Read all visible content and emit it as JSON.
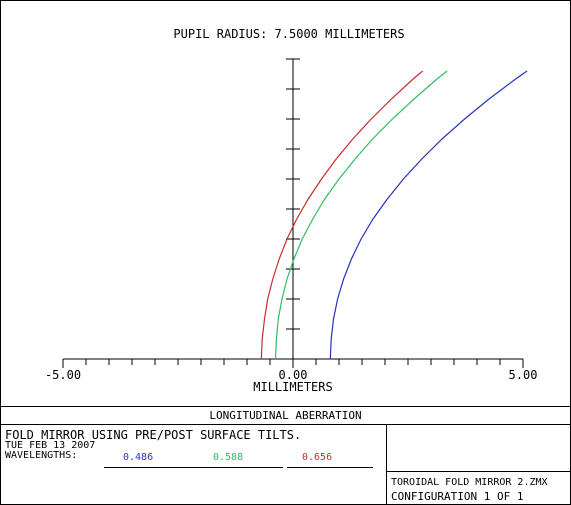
{
  "chart_data": {
    "type": "line",
    "title": "PUPIL RADIUS: 7.5000 MILLIMETERS",
    "xlabel": "MILLIMETERS",
    "ylabel": "",
    "xlim": [
      -5.0,
      5.0
    ],
    "ylim": [
      0,
      7.5
    ],
    "x_ticks": [
      -5.0,
      -4.5,
      -4.0,
      -3.5,
      -3.0,
      -2.5,
      -2.0,
      -1.5,
      -1.0,
      -0.5,
      0.0,
      0.5,
      1.0,
      1.5,
      2.0,
      2.5,
      3.0,
      3.5,
      4.0,
      4.5,
      5.0
    ],
    "x_tick_labels": [
      "-5.00",
      "0.00",
      "5.00"
    ],
    "x_tick_label_values": [
      -5.0,
      0.0,
      5.0
    ],
    "y_ticks": [
      0.75,
      1.5,
      2.25,
      3.0,
      3.75,
      4.5,
      5.25,
      6.0,
      6.75,
      7.5
    ],
    "grid": false,
    "series": [
      {
        "name": "0.486",
        "color": "#2733b8",
        "points": [
          [
            0.81,
            0.0
          ],
          [
            0.83,
            0.5
          ],
          [
            0.88,
            1.0
          ],
          [
            0.97,
            1.5
          ],
          [
            1.1,
            2.0
          ],
          [
            1.27,
            2.5
          ],
          [
            1.48,
            3.0
          ],
          [
            1.74,
            3.5
          ],
          [
            2.05,
            4.0
          ],
          [
            2.4,
            4.5
          ],
          [
            2.8,
            5.0
          ],
          [
            3.24,
            5.5
          ],
          [
            3.73,
            6.0
          ],
          [
            4.26,
            6.5
          ],
          [
            4.84,
            7.0
          ],
          [
            5.09,
            7.2
          ]
        ]
      },
      {
        "name": "0.588",
        "color": "#2fbf62",
        "points": [
          [
            -0.38,
            0.0
          ],
          [
            -0.36,
            0.5
          ],
          [
            -0.32,
            1.0
          ],
          [
            -0.24,
            1.5
          ],
          [
            -0.13,
            2.0
          ],
          [
            0.02,
            2.5
          ],
          [
            0.2,
            3.0
          ],
          [
            0.43,
            3.5
          ],
          [
            0.69,
            4.0
          ],
          [
            1.0,
            4.5
          ],
          [
            1.35,
            5.0
          ],
          [
            1.73,
            5.5
          ],
          [
            2.16,
            6.0
          ],
          [
            2.63,
            6.5
          ],
          [
            3.13,
            7.0
          ],
          [
            3.35,
            7.2
          ]
        ]
      },
      {
        "name": "0.656",
        "color": "#c62d2d",
        "points": [
          [
            -0.69,
            0.0
          ],
          [
            -0.67,
            0.5
          ],
          [
            -0.62,
            1.0
          ],
          [
            -0.55,
            1.5
          ],
          [
            -0.44,
            2.0
          ],
          [
            -0.3,
            2.5
          ],
          [
            -0.13,
            3.0
          ],
          [
            0.08,
            3.5
          ],
          [
            0.33,
            4.0
          ],
          [
            0.62,
            4.5
          ],
          [
            0.94,
            5.0
          ],
          [
            1.3,
            5.5
          ],
          [
            1.7,
            6.0
          ],
          [
            2.14,
            6.5
          ],
          [
            2.61,
            7.0
          ],
          [
            2.82,
            7.2
          ]
        ]
      }
    ]
  },
  "footer": {
    "section_title": "LONGITUDINAL ABERRATION",
    "description_line1": "FOLD MIRROR USING PRE/POST SURFACE TILTS.",
    "date_line": "TUE FEB 13 2007",
    "wavelengths_label": "WAVELENGTHS:",
    "file_name": "TOROIDAL FOLD MIRROR 2.ZMX",
    "configuration": "CONFIGURATION 1 OF 1"
  }
}
